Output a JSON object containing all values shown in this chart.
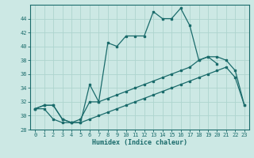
{
  "xlabel": "Humidex (Indice chaleur)",
  "bg_color": "#cce8e4",
  "line_color": "#1a6b6b",
  "grid_color": "#aed4ce",
  "xlim": [
    -0.5,
    23.5
  ],
  "ylim": [
    28,
    46
  ],
  "xticks": [
    0,
    1,
    2,
    3,
    4,
    5,
    6,
    7,
    8,
    9,
    10,
    11,
    12,
    13,
    14,
    15,
    16,
    17,
    18,
    19,
    20,
    21,
    22,
    23
  ],
  "yticks": [
    28,
    30,
    32,
    34,
    36,
    38,
    40,
    42,
    44
  ],
  "line1_x": [
    0,
    1,
    2,
    3,
    4,
    5,
    6,
    7,
    8,
    9,
    10,
    11,
    12,
    13,
    14,
    15,
    16,
    17,
    18,
    19,
    20,
    21
  ],
  "line1_y": [
    31.0,
    31.5,
    31.5,
    29.5,
    29.0,
    29.0,
    34.5,
    32.0,
    40.5,
    40.0,
    41.5,
    41.5,
    41.5,
    45.0,
    44.0,
    44.0,
    45.5,
    43.0,
    38.0,
    38.5,
    37.5,
    null
  ],
  "line2_x": [
    0,
    1,
    2,
    3,
    4,
    5,
    6,
    7,
    8,
    9,
    10,
    11,
    12,
    13,
    14,
    15,
    16,
    17,
    18,
    19,
    20,
    21,
    22,
    23
  ],
  "line2_y": [
    31.0,
    31.5,
    31.5,
    29.5,
    29.0,
    29.5,
    32.0,
    32.0,
    32.5,
    33.0,
    33.5,
    34.0,
    34.5,
    35.0,
    35.5,
    36.0,
    36.5,
    37.0,
    38.0,
    38.5,
    38.5,
    38.0,
    36.5,
    31.5
  ],
  "line3_x": [
    0,
    1,
    2,
    3,
    4,
    5,
    6,
    7,
    8,
    9,
    10,
    11,
    12,
    13,
    14,
    15,
    16,
    17,
    18,
    19,
    20,
    21,
    22,
    23
  ],
  "line3_y": [
    31.0,
    31.0,
    29.5,
    29.0,
    29.0,
    29.0,
    29.5,
    30.0,
    30.5,
    31.0,
    31.5,
    32.0,
    32.5,
    33.0,
    33.5,
    34.0,
    34.5,
    35.0,
    35.5,
    36.0,
    36.5,
    37.0,
    35.5,
    31.5
  ]
}
